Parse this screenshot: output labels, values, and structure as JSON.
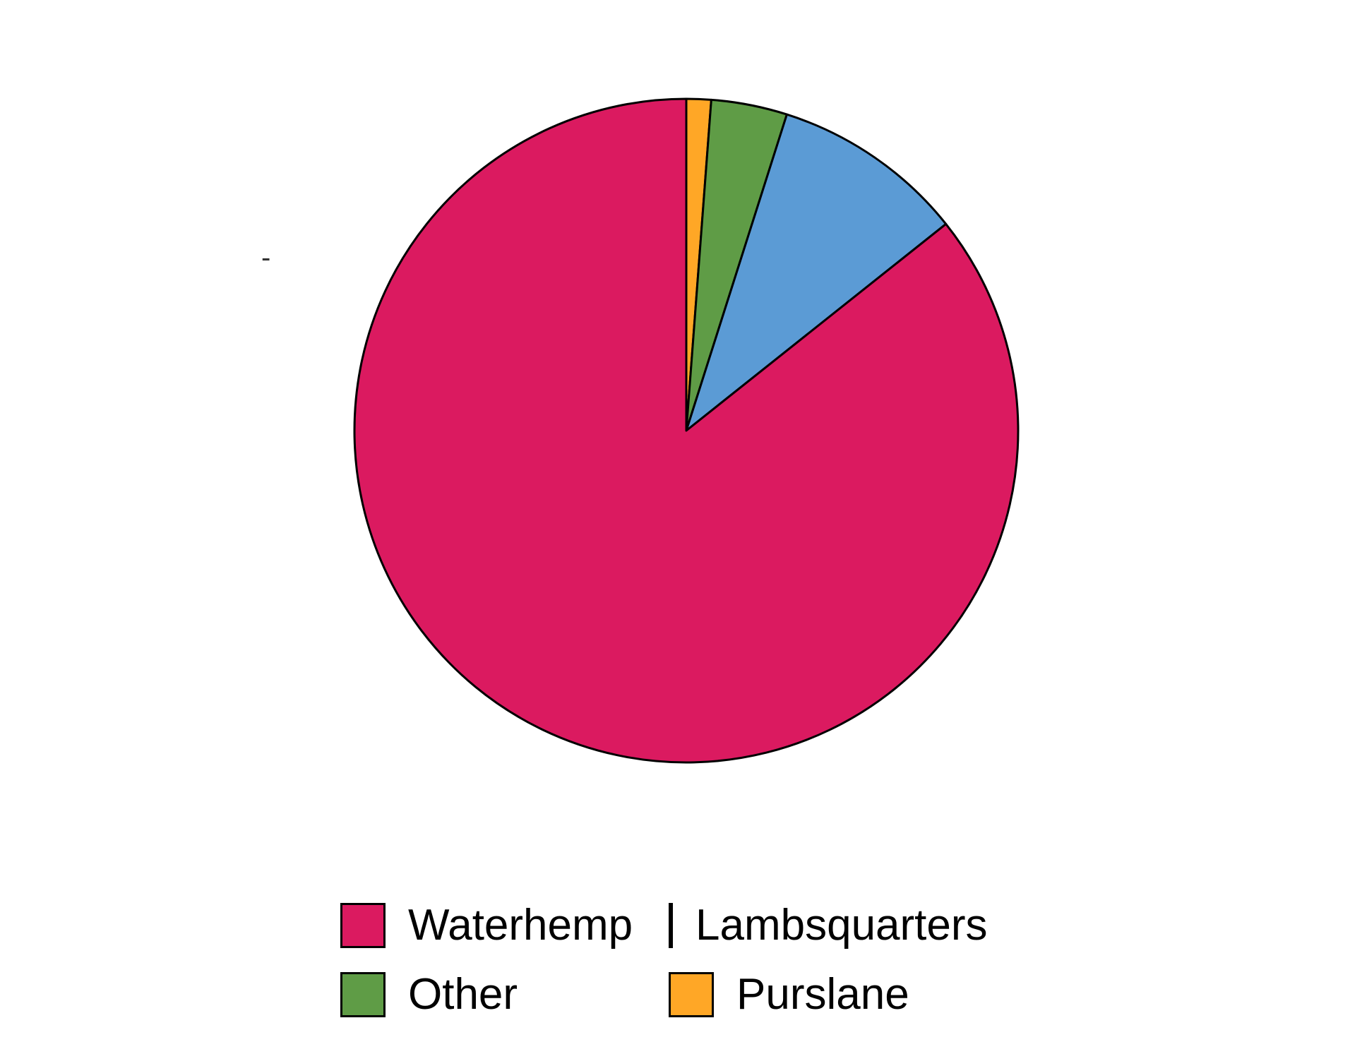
{
  "chart_data": {
    "type": "pie",
    "categories": [
      "Waterhemp",
      "Lambsquarters",
      "Other",
      "Purslane"
    ],
    "values": [
      85.7,
      9.4,
      3.7,
      1.2
    ],
    "colors": [
      "#DB1A60",
      "#5B9BD5",
      "#5F9C46",
      "#FFA726"
    ],
    "start": "top",
    "direction": "counterclockwise",
    "legend_position": "bottom",
    "tick_label": "-"
  }
}
